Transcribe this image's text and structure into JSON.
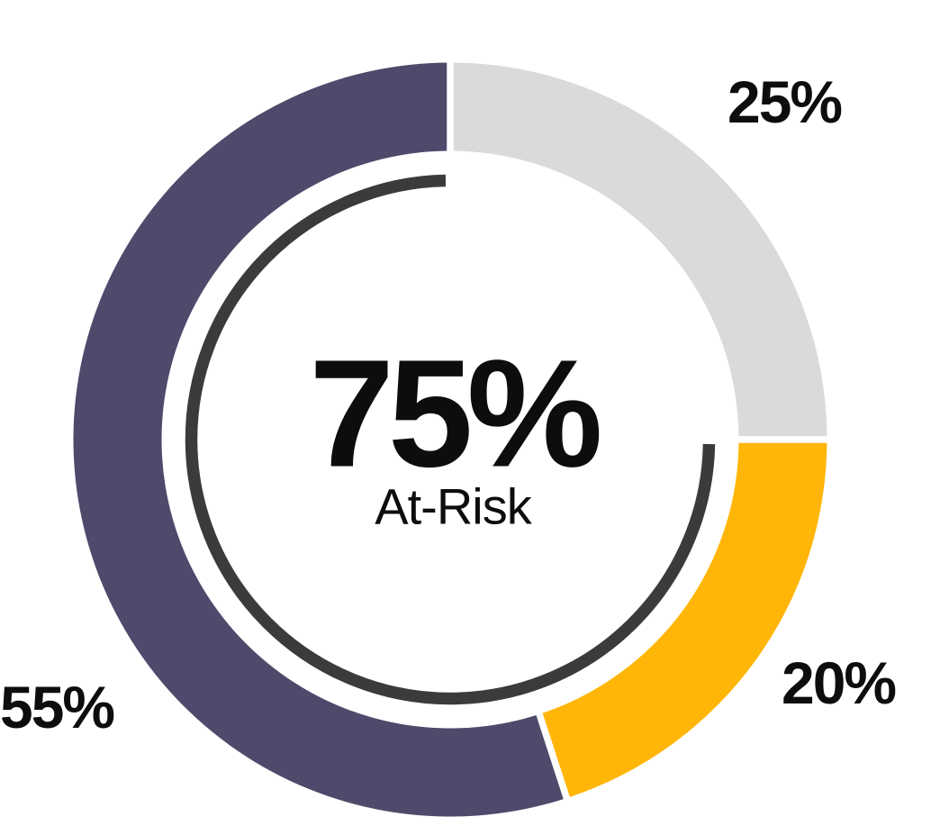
{
  "page": {
    "background": "#FFFFFF"
  },
  "chart_data": {
    "type": "pie",
    "subtype": "donut",
    "title": "",
    "unit": "%",
    "direction": "clockwise",
    "start_angle_deg": 0,
    "legend": "none",
    "slices": [
      {
        "label": "25%",
        "value": 25,
        "color": "#D9DADC",
        "label_position": "top-right"
      },
      {
        "label": "20%",
        "value": 20,
        "color": "#FFB608",
        "label_position": "bottom-right"
      },
      {
        "label": "55%",
        "value": 55,
        "color": "#4E4A6B",
        "label_position": "bottom-left"
      }
    ],
    "divider_color": "#FFFFFF",
    "center_label": {
      "value": "75%",
      "caption": "At-Risk",
      "color": "#0D0D0D"
    },
    "inner_arc": {
      "percent": 75,
      "color": "#3B3B3B",
      "note": "thin open arc inside the ring; its gap aligns with the 25% slice"
    }
  }
}
